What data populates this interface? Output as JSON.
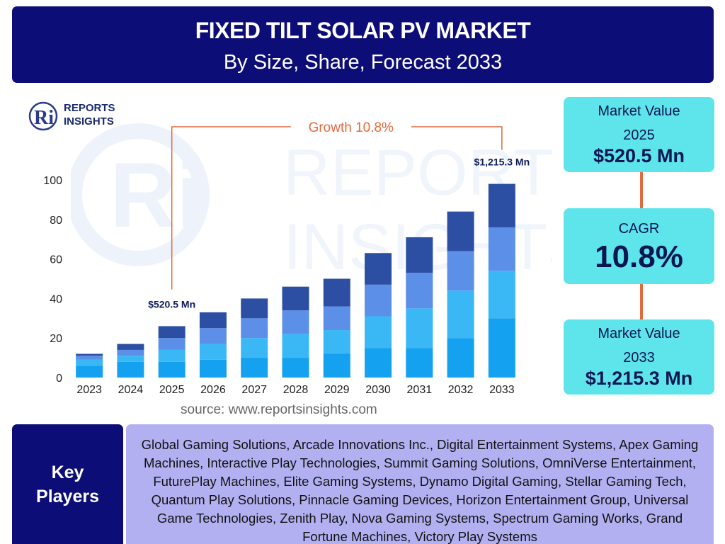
{
  "header": {
    "title": "FIXED TILT SOLAR PV MARKET",
    "subtitle": "By Size, Share, Forecast 2033"
  },
  "logo": {
    "line1": "REPORTS",
    "line2": "INSIGHTS",
    "mark": "Ri"
  },
  "watermark": {
    "mark": "Ri",
    "line1": "REPORTS",
    "line2": "INSIGHTS"
  },
  "colors": {
    "header_bg": "#0d0d78",
    "card_bg": "#5ee5ec",
    "players_bg": "#b3b0f2",
    "growth_accent": "#e36a3d",
    "segment_colors": [
      "#14a1ef",
      "#3ab8f5",
      "#5b8fe8",
      "#2c4fa3"
    ]
  },
  "chart_data": {
    "type": "bar",
    "stacked": true,
    "categories": [
      "2023",
      "2024",
      "2025",
      "2026",
      "2027",
      "2028",
      "2029",
      "2030",
      "2031",
      "2032",
      "2033"
    ],
    "series": [
      {
        "values": [
          6,
          8,
          8,
          9,
          10,
          10,
          12,
          15,
          15,
          20,
          30
        ]
      },
      {
        "values": [
          3,
          3,
          6,
          8,
          10,
          12,
          12,
          16,
          20,
          24,
          24
        ]
      },
      {
        "values": [
          2,
          3,
          6,
          8,
          10,
          12,
          12,
          16,
          18,
          20,
          22
        ]
      },
      {
        "values": [
          1,
          3,
          6,
          8,
          10,
          12,
          14,
          16,
          18,
          20,
          22
        ]
      }
    ],
    "ylim": [
      0,
      100
    ],
    "yticks": [
      0,
      20,
      40,
      60,
      80,
      100
    ],
    "grid": false,
    "annotations": [
      {
        "category": "2025",
        "text": "$520.5 Mn"
      },
      {
        "category": "2033",
        "text": "$1,215.3 Mn"
      }
    ],
    "growth": {
      "label": "Growth",
      "value": "10.8%",
      "from": "2025",
      "to": "2033"
    }
  },
  "source": "source: www.reportsinsights.com",
  "cards": [
    {
      "label_line1": "Market Value",
      "label_line2": "2025",
      "value": "$520.5 Mn"
    },
    {
      "label_line1": "CAGR",
      "value": "10.8%"
    },
    {
      "label_line1": "Market Value",
      "label_line2": "2033",
      "value": "$1,215.3 Mn"
    }
  ],
  "key_players": {
    "heading_line1": "Key",
    "heading_line2": "Players",
    "text": "Global Gaming Solutions, Arcade Innovations Inc., Digital Entertainment Systems, Apex Gaming Machines, Interactive Play Technologies, Summit Gaming Solutions, OmniVerse Entertainment, FuturePlay Machines, Elite Gaming Systems, Dynamo Digital Gaming, Stellar Gaming Tech, Quantum Play Solutions, Pinnacle Gaming Devices, Horizon Entertainment Group, Universal Game Technologies, Zenith Play, Nova Gaming Systems, Spectrum Gaming Works, Grand Fortune Machines, Victory Play Systems"
  }
}
